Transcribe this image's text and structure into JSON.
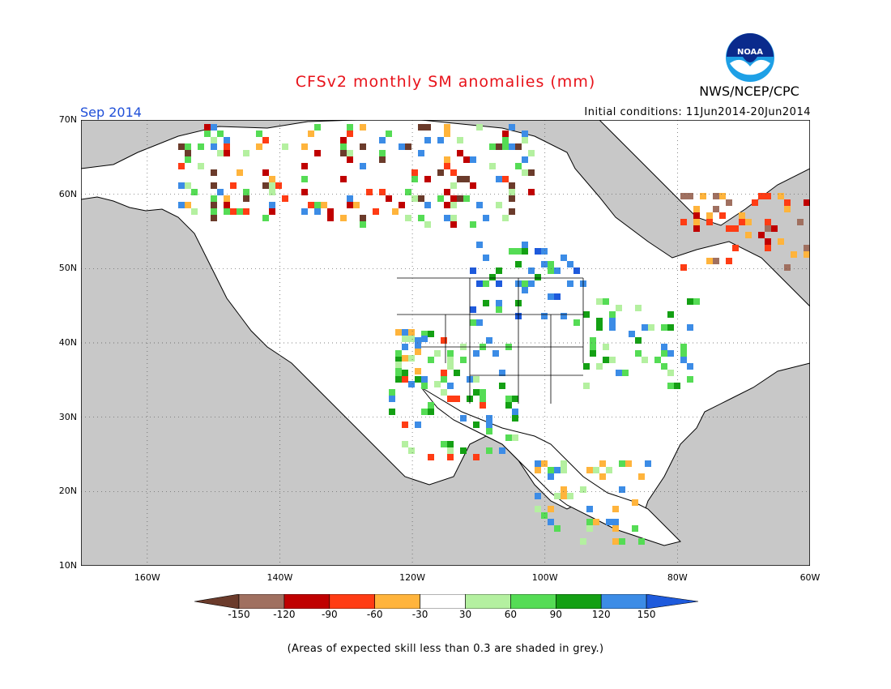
{
  "header": {
    "title": "CFSv2 monthly SM anomalies (mm)",
    "agency": "NWS/NCEP/CPC",
    "logo_text": "NOAA",
    "target_month": "Sep 2014",
    "initial_conditions": "Initial conditions: 11Jun2014-20Jun2014"
  },
  "map": {
    "lon_range": [
      -170,
      -60
    ],
    "lat_range": [
      10,
      70
    ],
    "background_gray": "#c8c8c8",
    "lat_labels": [
      "70N",
      "60N",
      "50N",
      "40N",
      "30N",
      "20N",
      "10N"
    ],
    "lon_labels": [
      "160W",
      "140W",
      "120W",
      "100W",
      "80W",
      "60W"
    ]
  },
  "colorbar": {
    "ticks": [
      "-150",
      "-120",
      "-90",
      "-60",
      "-30",
      "30",
      "60",
      "90",
      "120",
      "150"
    ],
    "colors": [
      "#6b3b2b",
      "#a07060",
      "#c00000",
      "#ff3c14",
      "#ffb43c",
      "#ffffff",
      "#b4f0a0",
      "#55dc55",
      "#14a014",
      "#3c8ce6",
      "#1e5adc"
    ]
  },
  "note": "(Areas of expected skill less than 0.3 are shaded in grey.)"
}
